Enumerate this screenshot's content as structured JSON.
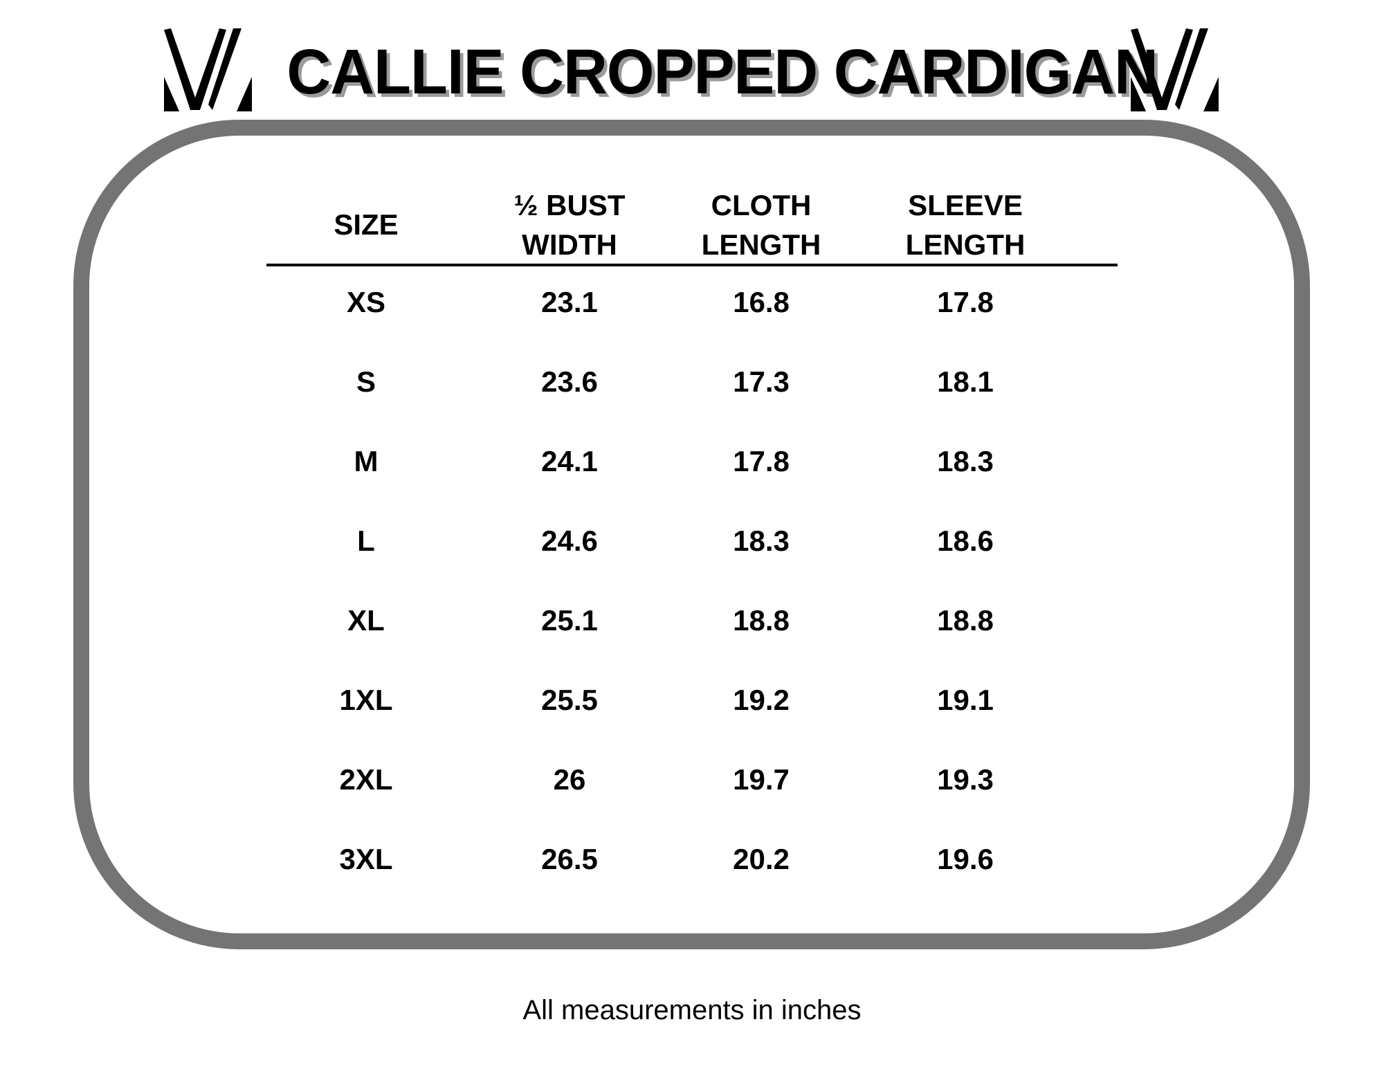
{
  "title": "CALLIE CROPPED CARDIGAN",
  "logo": {
    "icon": "v-monogram-logo"
  },
  "frame_color": "#747474",
  "table": {
    "headers": [
      {
        "line1": "",
        "line2": "SIZE"
      },
      {
        "line1": "½ BUST",
        "line2": "WIDTH"
      },
      {
        "line1": "CLOTH",
        "line2": "LENGTH"
      },
      {
        "line1": "SLEEVE",
        "line2": "LENGTH"
      }
    ],
    "rows": [
      [
        "XS",
        "23.1",
        "16.8",
        "17.8"
      ],
      [
        "S",
        "23.6",
        "17.3",
        "18.1"
      ],
      [
        "M",
        "24.1",
        "17.8",
        "18.3"
      ],
      [
        "L",
        "24.6",
        "18.3",
        "18.6"
      ],
      [
        "XL",
        "25.1",
        "18.8",
        "18.8"
      ],
      [
        "1XL",
        "25.5",
        "19.2",
        "19.1"
      ],
      [
        "2XL",
        "26",
        "19.7",
        "19.3"
      ],
      [
        "3XL",
        "26.5",
        "20.2",
        "19.6"
      ]
    ]
  },
  "footer": "All measurements in inches"
}
